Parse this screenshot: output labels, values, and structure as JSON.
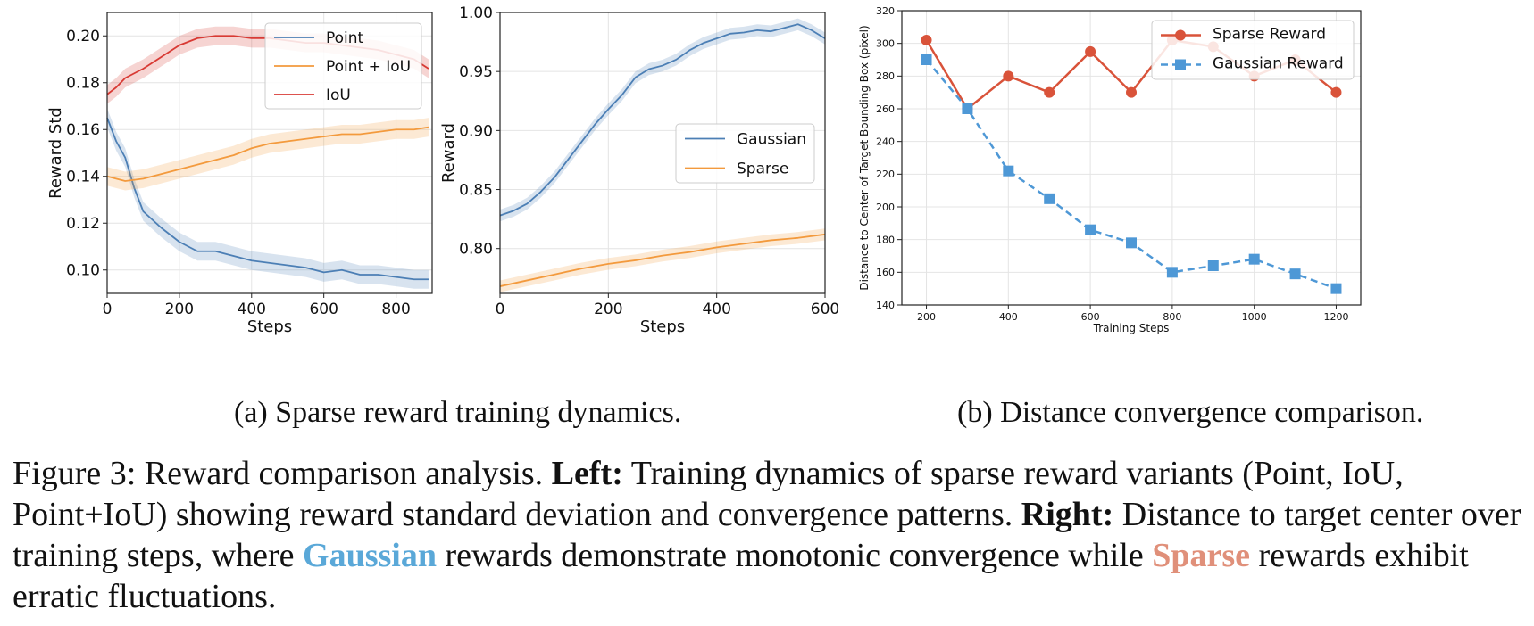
{
  "charts": {
    "chart_data": [
      {
        "type": "line",
        "xlabel": "Steps",
        "ylabel": "Reward Std",
        "xlim": [
          0,
          900
        ],
        "ylim": [
          0.09,
          0.21
        ],
        "x_ticks": [
          0,
          200,
          400,
          600,
          800
        ],
        "y_ticks": [
          0.1,
          0.12,
          0.14,
          0.16,
          0.18,
          0.2
        ],
        "grid": true,
        "legend_position": "upper-right",
        "series": [
          {
            "name": "Point",
            "color": "#4c7fb5",
            "x": [
              0,
              25,
              50,
              75,
              100,
              150,
              200,
              250,
              300,
              350,
              400,
              450,
              500,
              550,
              600,
              650,
              700,
              750,
              800,
              850,
              890
            ],
            "y": [
              0.165,
              0.155,
              0.148,
              0.135,
              0.125,
              0.118,
              0.112,
              0.108,
              0.108,
              0.106,
              0.104,
              0.103,
              0.102,
              0.101,
              0.099,
              0.1,
              0.098,
              0.098,
              0.097,
              0.096,
              0.096
            ]
          },
          {
            "name": "Point + IoU",
            "color": "#f39a3d",
            "x": [
              0,
              50,
              100,
              150,
              200,
              250,
              300,
              350,
              400,
              450,
              500,
              550,
              600,
              650,
              700,
              750,
              800,
              850,
              890
            ],
            "y": [
              0.14,
              0.138,
              0.139,
              0.141,
              0.143,
              0.145,
              0.147,
              0.149,
              0.152,
              0.154,
              0.155,
              0.156,
              0.157,
              0.158,
              0.158,
              0.159,
              0.16,
              0.16,
              0.161
            ]
          },
          {
            "name": "IoU",
            "color": "#d83a34",
            "x": [
              0,
              25,
              50,
              100,
              150,
              200,
              250,
              300,
              350,
              400,
              450,
              500,
              550,
              600,
              650,
              700,
              750,
              800,
              850,
              890
            ],
            "y": [
              0.175,
              0.178,
              0.182,
              0.186,
              0.191,
              0.196,
              0.199,
              0.2,
              0.2,
              0.199,
              0.199,
              0.198,
              0.197,
              0.197,
              0.196,
              0.195,
              0.194,
              0.192,
              0.19,
              0.186
            ]
          }
        ]
      },
      {
        "type": "line",
        "xlabel": "Steps",
        "ylabel": "Reward",
        "xlim": [
          0,
          600
        ],
        "ylim": [
          0.762,
          1.0
        ],
        "x_ticks": [
          0,
          200,
          400,
          600
        ],
        "y_ticks": [
          0.8,
          0.85,
          0.9,
          0.95,
          1.0
        ],
        "grid": true,
        "legend_position": "center-right",
        "series": [
          {
            "name": "Gaussian",
            "color": "#4c7fb5",
            "x": [
              0,
              25,
              50,
              75,
              100,
              125,
              150,
              175,
              200,
              225,
              250,
              275,
              300,
              325,
              350,
              375,
              400,
              425,
              450,
              475,
              500,
              525,
              550,
              575,
              600
            ],
            "y": [
              0.828,
              0.832,
              0.838,
              0.848,
              0.86,
              0.875,
              0.89,
              0.905,
              0.918,
              0.93,
              0.945,
              0.952,
              0.955,
              0.96,
              0.968,
              0.974,
              0.978,
              0.982,
              0.983,
              0.985,
              0.984,
              0.987,
              0.99,
              0.985,
              0.978
            ]
          },
          {
            "name": "Sparse",
            "color": "#f39a3d",
            "x": [
              0,
              50,
              100,
              150,
              200,
              250,
              300,
              350,
              400,
              450,
              500,
              550,
              600
            ],
            "y": [
              0.768,
              0.773,
              0.778,
              0.783,
              0.787,
              0.79,
              0.794,
              0.797,
              0.801,
              0.804,
              0.807,
              0.809,
              0.812
            ]
          }
        ]
      },
      {
        "type": "line",
        "xlabel": "Training Steps",
        "ylabel": "Distance to Center of Target Bounding Box (pixel)",
        "xlim": [
          140,
          1260
        ],
        "ylim": [
          140,
          320
        ],
        "x_ticks": [
          200,
          400,
          600,
          800,
          1000,
          1200
        ],
        "y_ticks": [
          140,
          160,
          180,
          200,
          220,
          240,
          260,
          280,
          300,
          320
        ],
        "grid": true,
        "legend_position": "upper-right",
        "series": [
          {
            "name": "Sparse Reward",
            "color": "#d9533a",
            "marker": "circle",
            "style": "solid",
            "x": [
              200,
              300,
              400,
              500,
              600,
              700,
              800,
              900,
              1000,
              1100,
              1200
            ],
            "y": [
              302,
              260,
              280,
              270,
              295,
              270,
              302,
              298,
              280,
              290,
              270
            ]
          },
          {
            "name": "Gaussian Reward",
            "color": "#4e98d6",
            "marker": "square",
            "style": "dashed",
            "x": [
              200,
              300,
              400,
              500,
              600,
              700,
              800,
              900,
              1000,
              1100,
              1200
            ],
            "y": [
              290,
              260,
              222,
              205,
              186,
              178,
              160,
              164,
              168,
              159,
              150
            ]
          }
        ]
      }
    ]
  },
  "subcaptions": {
    "a": "(a) Sparse reward training dynamics.",
    "b": "(b) Distance convergence comparison."
  },
  "caption": {
    "label": "Figure 3: Reward comparison analysis.",
    "left_bold": "Left:",
    "left_text": "Training dynamics of sparse reward variants (Point, IoU, Point+IoU) showing reward standard deviation and convergence patterns.",
    "right_bold": "Right:",
    "right_text_1": "Distance to target center over training steps, where",
    "gaussian_word": "Gaussian",
    "right_text_2": "rewards demonstrate monotonic convergence while",
    "sparse_word": "Sparse",
    "right_text_3": "rewards exhibit erratic fluctuations."
  }
}
